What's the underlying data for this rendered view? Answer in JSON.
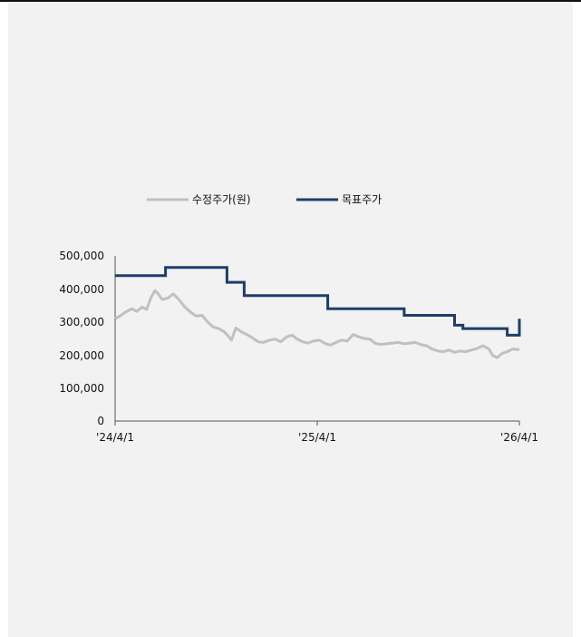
{
  "chart_data": {
    "type": "line",
    "title": "",
    "xlabel": "",
    "ylabel": "",
    "ylim": [
      0,
      500000
    ],
    "xlim": [
      "2024-04-01",
      "2026-04-01"
    ],
    "y_ticks": [
      "500,000",
      "400,000",
      "300,000",
      "200,000",
      "100,000",
      "0"
    ],
    "x_ticks": [
      "'24/4/1",
      "'25/4/1",
      "'26/4/1"
    ],
    "legend": {
      "placement": "top-center"
    },
    "series": [
      {
        "name": "수정주가(원)",
        "color": "#c0c0c0",
        "points": [
          [
            "2024-04-01",
            310000
          ],
          [
            "2024-04-10",
            318000
          ],
          [
            "2024-04-20",
            330000
          ],
          [
            "2024-05-01",
            340000
          ],
          [
            "2024-05-10",
            332000
          ],
          [
            "2024-05-20",
            345000
          ],
          [
            "2024-05-28",
            338000
          ],
          [
            "2024-06-05",
            375000
          ],
          [
            "2024-06-12",
            395000
          ],
          [
            "2024-06-18",
            385000
          ],
          [
            "2024-06-25",
            368000
          ],
          [
            "2024-07-05",
            372000
          ],
          [
            "2024-07-15",
            385000
          ],
          [
            "2024-07-25",
            368000
          ],
          [
            "2024-08-05",
            345000
          ],
          [
            "2024-08-15",
            330000
          ],
          [
            "2024-08-25",
            318000
          ],
          [
            "2024-09-05",
            320000
          ],
          [
            "2024-09-15",
            300000
          ],
          [
            "2024-09-25",
            285000
          ],
          [
            "2024-10-05",
            280000
          ],
          [
            "2024-10-15",
            270000
          ],
          [
            "2024-10-22",
            258000
          ],
          [
            "2024-10-28",
            245000
          ],
          [
            "2024-11-05",
            282000
          ],
          [
            "2024-11-15",
            270000
          ],
          [
            "2024-11-25",
            262000
          ],
          [
            "2024-12-05",
            252000
          ],
          [
            "2024-12-15",
            240000
          ],
          [
            "2024-12-25",
            238000
          ],
          [
            "2025-01-05",
            245000
          ],
          [
            "2025-01-15",
            248000
          ],
          [
            "2025-01-25",
            240000
          ],
          [
            "2025-02-05",
            255000
          ],
          [
            "2025-02-15",
            260000
          ],
          [
            "2025-02-22",
            250000
          ],
          [
            "2025-03-05",
            240000
          ],
          [
            "2025-03-15",
            236000
          ],
          [
            "2025-03-25",
            242000
          ],
          [
            "2025-04-05",
            245000
          ],
          [
            "2025-04-15",
            235000
          ],
          [
            "2025-04-25",
            230000
          ],
          [
            "2025-05-05",
            238000
          ],
          [
            "2025-05-15",
            245000
          ],
          [
            "2025-05-25",
            242000
          ],
          [
            "2025-06-05",
            262000
          ],
          [
            "2025-06-15",
            255000
          ],
          [
            "2025-06-25",
            250000
          ],
          [
            "2025-07-05",
            248000
          ],
          [
            "2025-07-15",
            235000
          ],
          [
            "2025-07-25",
            232000
          ],
          [
            "2025-08-05",
            234000
          ],
          [
            "2025-08-15",
            236000
          ],
          [
            "2025-08-25",
            238000
          ],
          [
            "2025-09-05",
            234000
          ],
          [
            "2025-09-15",
            236000
          ],
          [
            "2025-09-25",
            238000
          ],
          [
            "2025-10-05",
            232000
          ],
          [
            "2025-10-15",
            228000
          ],
          [
            "2025-10-25",
            218000
          ],
          [
            "2025-11-05",
            212000
          ],
          [
            "2025-11-15",
            210000
          ],
          [
            "2025-11-25",
            215000
          ],
          [
            "2025-12-05",
            208000
          ],
          [
            "2025-12-15",
            212000
          ],
          [
            "2025-12-25",
            210000
          ],
          [
            "2026-01-05",
            215000
          ],
          [
            "2026-01-15",
            220000
          ],
          [
            "2026-01-25",
            228000
          ],
          [
            "2026-02-05",
            218000
          ],
          [
            "2026-02-12",
            198000
          ],
          [
            "2026-02-20",
            192000
          ],
          [
            "2026-03-01",
            205000
          ],
          [
            "2026-03-10",
            210000
          ],
          [
            "2026-03-20",
            218000
          ],
          [
            "2026-04-01",
            216000
          ]
        ]
      },
      {
        "name": "목표주가",
        "color": "#1f3d6b",
        "step": true,
        "points": [
          [
            "2024-04-01",
            440000
          ],
          [
            "2024-07-01",
            465000
          ],
          [
            "2024-10-20",
            420000
          ],
          [
            "2024-11-20",
            380000
          ],
          [
            "2025-04-20",
            340000
          ],
          [
            "2025-09-05",
            320000
          ],
          [
            "2025-12-05",
            290000
          ],
          [
            "2025-12-20",
            280000
          ],
          [
            "2026-03-10",
            260000
          ],
          [
            "2026-04-01",
            310000
          ]
        ]
      }
    ]
  }
}
